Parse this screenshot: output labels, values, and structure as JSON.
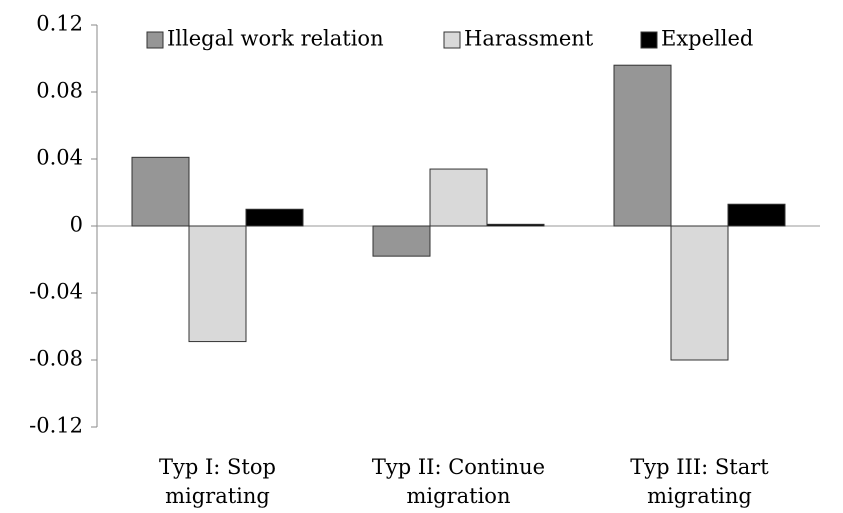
{
  "chart_data": {
    "type": "bar",
    "categories": [
      "Typ I: Stop migrating",
      "Typ II: Continue migration",
      "Typ III: Start migrating"
    ],
    "series": [
      {
        "name": "Illegal work relation",
        "color": "#969696",
        "values": [
          0.041,
          -0.018,
          0.096
        ]
      },
      {
        "name": "Harassment",
        "color": "#d9d9d9",
        "values": [
          -0.069,
          0.034,
          -0.08
        ]
      },
      {
        "name": "Expelled",
        "color": "#000000",
        "values": [
          0.01,
          0.001,
          0.013
        ]
      }
    ],
    "ylim": [
      -0.12,
      0.12
    ],
    "yticks": [
      -0.12,
      -0.08,
      -0.04,
      0,
      0.04,
      0.08,
      0.12
    ],
    "grid": false,
    "legend": "top"
  }
}
